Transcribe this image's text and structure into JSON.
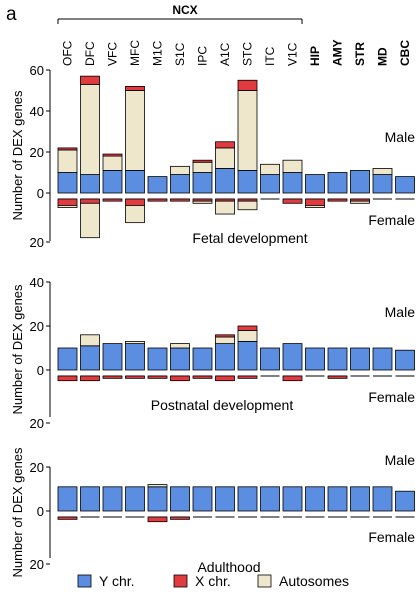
{
  "figure": {
    "panel_label": "a",
    "group_label": "NCX",
    "legend": [
      {
        "label": "Y chr.",
        "color": "#5b8de0"
      },
      {
        "label": "X chr.",
        "color": "#e23b3f"
      },
      {
        "label": "Autosomes",
        "color": "#efe7cc"
      }
    ]
  },
  "chart_data": {
    "type": "bar",
    "stacked": true,
    "categories": [
      "OFC",
      "DFC",
      "VFC",
      "MFC",
      "M1C",
      "S1C",
      "IPC",
      "A1C",
      "STC",
      "ITC",
      "V1C",
      "HIP",
      "AMY",
      "STR",
      "MD",
      "CBC"
    ],
    "bold_categories": [
      "HIP",
      "AMY",
      "STR",
      "MD",
      "CBC"
    ],
    "ylabel": "Number of DEX genes",
    "colors": {
      "y": "#5b8de0",
      "x": "#e23b3f",
      "auto": "#efe7cc"
    },
    "panels": [
      {
        "title": "Fetal development",
        "top_label": "Male",
        "bottom_label": "Female",
        "ylim_top": [
          0,
          60
        ],
        "yticks_top": [
          0,
          20,
          40,
          60
        ],
        "ylim_bottom": [
          0,
          20
        ],
        "yticks_bottom": [
          0,
          20
        ],
        "male": {
          "y": [
            10,
            9,
            11,
            11,
            8,
            9,
            10,
            12,
            11,
            9,
            10,
            9,
            10,
            11,
            9,
            8
          ],
          "x": [
            1,
            4,
            1,
            2,
            0,
            0,
            1,
            3,
            5,
            0,
            0,
            0,
            0,
            0,
            0,
            0
          ],
          "auto": [
            11,
            44,
            7,
            39,
            0,
            4,
            5,
            10,
            39,
            5,
            6,
            0,
            0,
            0,
            3,
            0
          ]
        },
        "female": {
          "y": [
            0,
            0,
            0,
            0,
            0,
            0,
            0,
            0,
            0,
            0,
            0,
            0,
            0,
            0,
            0,
            0
          ],
          "x": [
            3,
            2,
            1,
            3,
            1,
            1,
            1,
            1,
            1,
            0,
            2,
            3,
            1,
            1,
            0,
            0
          ],
          "auto": [
            1,
            16,
            0,
            8,
            0,
            0,
            1,
            6,
            4,
            0,
            0,
            1,
            0,
            1,
            0,
            0
          ]
        }
      },
      {
        "title": "Postnatal development",
        "top_label": "Male",
        "bottom_label": "Female",
        "ylim_top": [
          0,
          40
        ],
        "yticks_top": [
          0,
          20,
          40
        ],
        "ylim_bottom": [
          0,
          20
        ],
        "yticks_bottom": [
          0,
          20
        ],
        "male": {
          "y": [
            10,
            11,
            12,
            12,
            10,
            10,
            10,
            12,
            13,
            10,
            12,
            10,
            10,
            10,
            10,
            9
          ],
          "x": [
            0,
            0,
            0,
            0,
            0,
            0,
            0,
            1,
            2,
            0,
            0,
            0,
            0,
            0,
            0,
            0
          ],
          "auto": [
            0,
            5,
            0,
            1,
            0,
            2,
            0,
            3,
            5,
            0,
            0,
            0,
            0,
            0,
            0,
            0
          ]
        },
        "female": {
          "y": [
            0,
            0,
            0,
            0,
            0,
            0,
            0,
            0,
            0,
            0,
            0,
            0,
            0,
            0,
            0,
            0
          ],
          "x": [
            2,
            2,
            1,
            1,
            1,
            2,
            1,
            2,
            1,
            0,
            2,
            0,
            1,
            0,
            0,
            0
          ],
          "auto": [
            0,
            0,
            0,
            0,
            0,
            0,
            0,
            0,
            0,
            0,
            0,
            0,
            0,
            0,
            0,
            0
          ]
        }
      },
      {
        "title": "Adulthood",
        "top_label": "Male",
        "bottom_label": "Female",
        "ylim_top": [
          0,
          20
        ],
        "yticks_top": [
          0,
          20
        ],
        "ylim_bottom": [
          0,
          20
        ],
        "yticks_bottom": [
          0,
          20
        ],
        "male": {
          "y": [
            11,
            11,
            11,
            11,
            11,
            11,
            11,
            11,
            11,
            11,
            11,
            11,
            11,
            11,
            11,
            9
          ],
          "x": [
            0,
            0,
            0,
            0,
            0,
            0,
            0,
            0,
            0,
            0,
            0,
            0,
            0,
            0,
            0,
            0
          ],
          "auto": [
            0,
            0,
            0,
            0,
            1,
            0,
            0,
            0,
            0,
            0,
            0,
            0,
            0,
            0,
            0,
            0
          ]
        },
        "female": {
          "y": [
            0,
            0,
            0,
            0,
            0,
            0,
            0,
            0,
            0,
            0,
            0,
            0,
            0,
            0,
            0,
            0
          ],
          "x": [
            1,
            0,
            0,
            0,
            2,
            1,
            0,
            0,
            0,
            0,
            0,
            0,
            0,
            0,
            0,
            0
          ],
          "auto": [
            0,
            0,
            0,
            0,
            0,
            0,
            0,
            0,
            0,
            0,
            0,
            0,
            0,
            0,
            0,
            0
          ]
        }
      }
    ]
  }
}
